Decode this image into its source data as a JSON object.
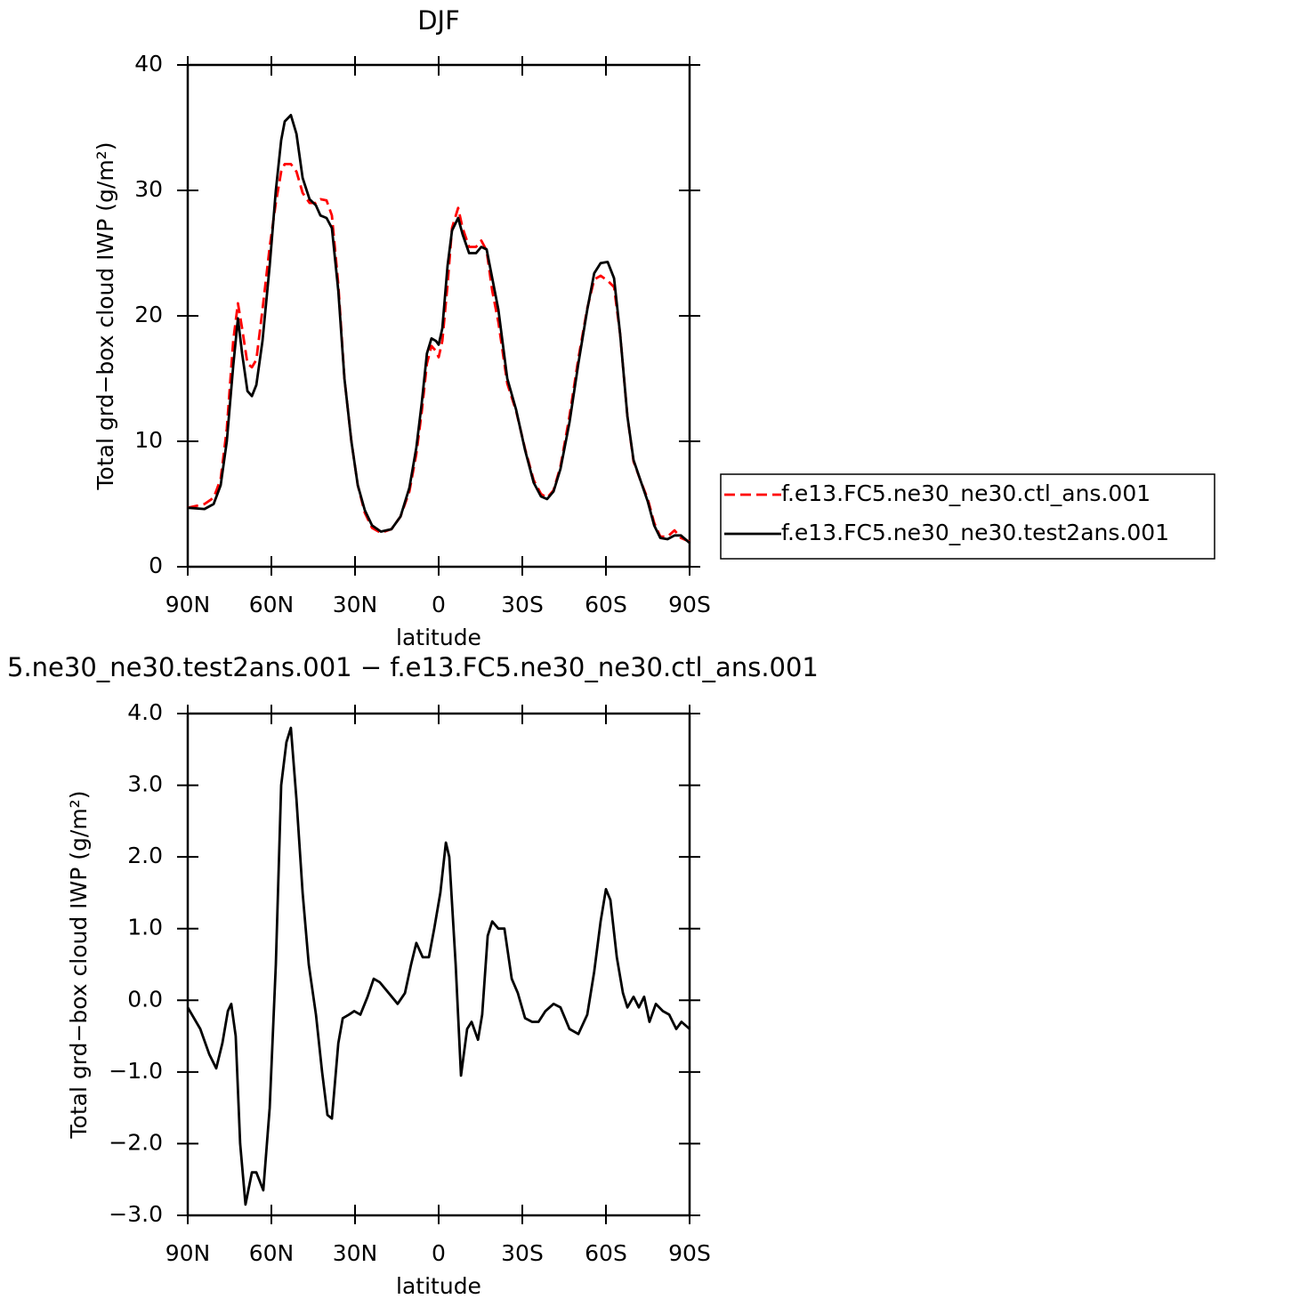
{
  "chart_data": [
    {
      "type": "line",
      "title": "DJF",
      "xlabel": "latitude",
      "ylabel": "Total grd−box cloud IWP (g/m²)",
      "x": [
        90,
        84,
        80.7,
        78.2,
        76,
        73.7,
        72,
        70.5,
        68.6,
        67,
        65.4,
        63.2,
        60.6,
        58.4,
        56.5,
        55.2,
        53,
        51,
        48.8,
        46.3,
        44,
        42.4,
        40.2,
        38.3,
        36,
        33.8,
        31.3,
        29,
        26.5,
        23.9,
        20.7,
        16.9,
        13.7,
        10.5,
        8,
        6.1,
        4.2,
        2.6,
        1,
        0,
        -1.3,
        -3.2,
        -4.8,
        -7,
        -8.6,
        -10.9,
        -13.4,
        -15.3,
        -17.2,
        -19.2,
        -21.4,
        -24.6,
        -27.8,
        -31,
        -34.1,
        -36.7,
        -38.9,
        -41.2,
        -43.7,
        -46.9,
        -50.1,
        -53.3,
        -55.8,
        -58.1,
        -60.6,
        -62.9,
        -65.1,
        -67.7,
        -69.9,
        -72.5,
        -75,
        -77.3,
        -79.5,
        -82.1,
        -84.6,
        -86.9,
        -90
      ],
      "series": [
        {
          "name": "f.e13.FC5.ne30_ne30.ctl_ans.001",
          "color": "#ff0000",
          "dash": "dashed",
          "values": [
            4.7,
            5.0,
            5.5,
            7,
            11,
            18,
            21,
            19,
            16.2,
            15.9,
            16.5,
            20.5,
            25.5,
            29,
            31.5,
            32.1,
            32.1,
            31.5,
            29.8,
            29,
            29,
            29.3,
            29.2,
            28,
            22.5,
            15,
            10,
            6.5,
            4.3,
            3.1,
            2.7,
            3,
            4,
            6,
            9,
            12.3,
            16.2,
            17.6,
            17.2,
            16.7,
            18,
            22.5,
            27,
            28.6,
            27,
            25.5,
            25.5,
            26,
            25.2,
            22,
            19.5,
            14.6,
            12.4,
            9.4,
            6.9,
            5.8,
            5.5,
            6.1,
            8,
            12,
            16.6,
            20.6,
            22.9,
            23.2,
            22.8,
            22.3,
            18.5,
            12,
            8.4,
            6.8,
            5.4,
            3.5,
            2.4,
            2.4,
            2.9,
            2.3,
            2.0
          ]
        },
        {
          "name": "f.e13.FC5.ne30_ne30.test2ans.001",
          "color": "#000000",
          "dash": "solid",
          "values": [
            4.7,
            4.6,
            5.0,
            6.5,
            10,
            16,
            19.8,
            17,
            14,
            13.6,
            14.5,
            18,
            24,
            30,
            34,
            35.5,
            36,
            34.5,
            31,
            29.3,
            28.8,
            28,
            27.8,
            27,
            22,
            15,
            10,
            6.5,
            4.5,
            3.3,
            2.8,
            3,
            4,
            6.3,
            9.5,
            13,
            17,
            18.2,
            18,
            17.7,
            19,
            24,
            26.8,
            27.8,
            26.5,
            25,
            25,
            25.5,
            25.3,
            23,
            20.5,
            15,
            12.5,
            9.3,
            6.7,
            5.6,
            5.4,
            6.0,
            7.8,
            11.5,
            16.2,
            20.5,
            23.4,
            24.2,
            24.3,
            23,
            18.5,
            12,
            8.5,
            6.8,
            5.2,
            3.3,
            2.3,
            2.2,
            2.5,
            2.5,
            1.9
          ]
        }
      ],
      "xlim": [
        90,
        -90
      ],
      "xticks": [
        {
          "value": 90,
          "label": "90N"
        },
        {
          "value": 60,
          "label": "60N"
        },
        {
          "value": 30,
          "label": "30N"
        },
        0,
        {
          "value": -30,
          "label": "30S"
        },
        {
          "value": -60,
          "label": "60S"
        },
        {
          "value": -90,
          "label": "90S"
        }
      ],
      "ylim": [
        0,
        40
      ],
      "yticks": [
        0,
        10,
        20,
        30,
        40
      ],
      "legend": "right"
    },
    {
      "type": "line",
      "title": "5.ne30_ne30.test2ans.001 − f.e13.FC5.ne30_ne30.ctl_ans.001",
      "xlabel": "latitude",
      "ylabel": "Total grd−box cloud IWP (g/m²)",
      "x": [
        90,
        85.5,
        82.3,
        79.8,
        77.6,
        75.6,
        74.4,
        72.8,
        71.2,
        69.3,
        67,
        65.4,
        62.9,
        60.6,
        58.4,
        56.5,
        54.6,
        53,
        51,
        48.8,
        46.6,
        44,
        41.8,
        39.9,
        38.3,
        36,
        34.4,
        32.2,
        30.3,
        28.1,
        25.5,
        23.3,
        21.1,
        17.9,
        14.7,
        12.1,
        9.9,
        8,
        5.7,
        3.5,
        1.6,
        -0.6,
        -2.6,
        -3.8,
        -6.1,
        -8,
        -10.2,
        -11.8,
        -14.1,
        -15.6,
        -17.6,
        -19.2,
        -21.4,
        -23.6,
        -26.2,
        -28.4,
        -31,
        -33.5,
        -35.8,
        -38.3,
        -41.2,
        -43.7,
        -46.9,
        -50.1,
        -53.3,
        -55.8,
        -58.1,
        -60,
        -61.6,
        -63.9,
        -66.1,
        -67.7,
        -69.9,
        -71.8,
        -73.7,
        -75.6,
        -77.9,
        -80.4,
        -82.7,
        -85.2,
        -87.1,
        -90
      ],
      "series": [
        {
          "color": "#000000",
          "dash": "solid",
          "values": [
            -0.1,
            -0.4,
            -0.75,
            -0.95,
            -0.6,
            -0.15,
            -0.05,
            -0.5,
            -2.0,
            -2.85,
            -2.4,
            -2.4,
            -2.65,
            -1.5,
            0.5,
            3.0,
            3.6,
            3.8,
            2.8,
            1.5,
            0.5,
            -0.2,
            -1.0,
            -1.6,
            -1.65,
            -0.6,
            -0.25,
            -0.2,
            -0.15,
            -0.2,
            0.05,
            0.3,
            0.25,
            0.1,
            -0.05,
            0.1,
            0.5,
            0.8,
            0.6,
            0.6,
            1.0,
            1.5,
            2.2,
            2.0,
            0.5,
            -1.05,
            -0.4,
            -0.3,
            -0.55,
            -0.2,
            0.9,
            1.1,
            1.0,
            1.0,
            0.3,
            0.1,
            -0.25,
            -0.3,
            -0.3,
            -0.15,
            -0.05,
            -0.1,
            -0.4,
            -0.47,
            -0.2,
            0.4,
            1.1,
            1.55,
            1.4,
            0.6,
            0.1,
            -0.1,
            0.05,
            -0.1,
            0.05,
            -0.3,
            -0.05,
            -0.15,
            -0.2,
            -0.4,
            -0.3,
            -0.4
          ]
        }
      ],
      "xlim": [
        90,
        -90
      ],
      "xticks": [
        {
          "value": 90,
          "label": "90N"
        },
        {
          "value": 60,
          "label": "60N"
        },
        {
          "value": 30,
          "label": "30N"
        },
        0,
        {
          "value": -30,
          "label": "30S"
        },
        {
          "value": -60,
          "label": "60S"
        },
        {
          "value": -90,
          "label": "90S"
        }
      ],
      "ylim": [
        -3,
        4
      ],
      "yticks": [
        {
          "value": 4,
          "label": "4.0"
        },
        {
          "value": 3,
          "label": "3.0"
        },
        {
          "value": 2,
          "label": "2.0"
        },
        {
          "value": 1,
          "label": "1.0"
        },
        {
          "value": 0,
          "label": "0.0"
        },
        {
          "value": -1,
          "label": "−1.0"
        },
        {
          "value": -2,
          "label": "−2.0"
        },
        {
          "value": -3,
          "label": "−3.0"
        }
      ]
    }
  ]
}
